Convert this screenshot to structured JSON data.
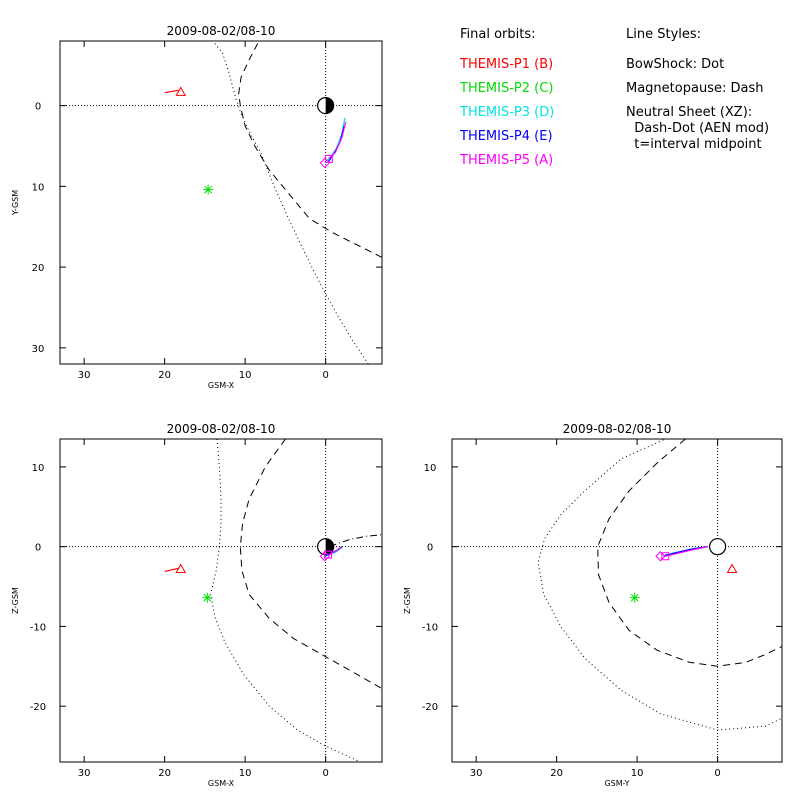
{
  "legend": {
    "heading": "Final orbits:",
    "items": [
      {
        "label": "THEMIS-P1 (B)",
        "color": "#ff0000"
      },
      {
        "label": "THEMIS-P2 (C)",
        "color": "#00dd00"
      },
      {
        "label": "THEMIS-P3 (D)",
        "color": "#00e5e5"
      },
      {
        "label": "THEMIS-P4 (E)",
        "color": "#0000ff"
      },
      {
        "label": "THEMIS-P5 (A)",
        "color": "#ff00ff"
      }
    ]
  },
  "line_styles": {
    "heading": "Line Styles:",
    "lines": [
      "BowShock: Dot",
      "Magnetopause: Dash",
      "Neutral Sheet (XZ):",
      "  Dash-Dot (AEN mod)",
      "  t=interval midpoint"
    ]
  },
  "chart_data": [
    {
      "type": "scatter",
      "title": "2009-08-02/08-10",
      "xlabel": "GSM-X",
      "ylabel": "Y-GSM",
      "xlim": [
        33,
        -7
      ],
      "ylim": [
        32,
        -8
      ],
      "xticks": [
        30,
        20,
        10,
        0
      ],
      "xticklabels": [
        "30",
        "20",
        "10",
        "0"
      ],
      "yticks": [
        0,
        10,
        20,
        30
      ],
      "yticklabels": [
        "0",
        "10",
        "20",
        "30"
      ],
      "earth": [
        0,
        0
      ],
      "bowshock": [
        [
          -5.3,
          32
        ],
        [
          -3.3,
          29
        ],
        [
          -1.5,
          26
        ],
        [
          0.7,
          22
        ],
        [
          2.7,
          18
        ],
        [
          4.6,
          14
        ],
        [
          6.4,
          10
        ],
        [
          8,
          6
        ],
        [
          9.6,
          3
        ],
        [
          10.5,
          1
        ],
        [
          11.2,
          -1
        ],
        [
          12,
          -4
        ],
        [
          12.8,
          -6.5
        ],
        [
          14,
          -8
        ]
      ],
      "magnetopause": [
        [
          -7,
          18.8
        ],
        [
          -4,
          17.3
        ],
        [
          -1,
          15.8
        ],
        [
          2,
          14
        ],
        [
          4.5,
          11
        ],
        [
          7,
          8
        ],
        [
          8.8,
          5
        ],
        [
          10,
          2.5
        ],
        [
          10.6,
          0
        ],
        [
          10.8,
          -1.5
        ],
        [
          10.5,
          -3.5
        ],
        [
          9.6,
          -5.5
        ],
        [
          8.8,
          -7
        ],
        [
          8.3,
          -8
        ]
      ],
      "series": [
        {
          "name": "THEMIS-P1 (B)",
          "color": "#ff0000",
          "path": [
            [
              20,
              -1.6
            ],
            [
              18.3,
              -1.9
            ]
          ],
          "marker": "triangle",
          "at": [
            18,
            -1.7
          ]
        },
        {
          "name": "THEMIS-P2 (C)",
          "color": "#00dd00",
          "path": [],
          "marker": "asterisk",
          "at": [
            14.6,
            10.4
          ]
        },
        {
          "name": "THEMIS-P3 (D)",
          "color": "#00e5e5",
          "path": [
            [
              -2.4,
              1.5
            ],
            [
              -2,
              3.5
            ],
            [
              -1.3,
              5.4
            ],
            [
              -0.2,
              6.8
            ]
          ],
          "marker": "none",
          "at": null
        },
        {
          "name": "THEMIS-P4 (E)",
          "color": "#0000ff",
          "path": [
            [
              -2.3,
              2.5
            ],
            [
              -1.8,
              4.5
            ],
            [
              -1,
              6
            ],
            [
              -0.3,
              7
            ]
          ],
          "marker": "none",
          "at": null
        },
        {
          "name": "THEMIS-P5 (A)",
          "color": "#ff00ff",
          "path": [
            [
              -2.5,
              2
            ],
            [
              -2,
              4
            ],
            [
              -1.2,
              5.8
            ],
            [
              -0.4,
              6.6
            ]
          ],
          "marker": "square",
          "at": [
            -0.4,
            6.6
          ]
        },
        {
          "name": "THEMIS-P5 (A)",
          "color": "#ff00ff",
          "path": [],
          "marker": "diamond",
          "at": [
            0.1,
            7.1
          ]
        }
      ]
    },
    {
      "type": "scatter",
      "title": "2009-08-02/08-10",
      "xlabel": "GSM-X",
      "ylabel": "Z-GSM",
      "xlim": [
        33,
        -7
      ],
      "ylim": [
        -27,
        13.5
      ],
      "xticks": [
        30,
        20,
        10,
        0
      ],
      "xticklabels": [
        "30",
        "20",
        "10",
        "0"
      ],
      "yticks": [
        10,
        0,
        -10,
        -20
      ],
      "yticklabels": [
        "10",
        "0",
        "-10",
        "-20"
      ],
      "earth": [
        0,
        0
      ],
      "bowshock": [
        [
          13.5,
          13.5
        ],
        [
          13.2,
          10
        ],
        [
          13,
          6
        ],
        [
          13,
          3
        ],
        [
          13.2,
          0
        ],
        [
          13.6,
          -3
        ],
        [
          14.3,
          -6
        ],
        [
          13.7,
          -9
        ],
        [
          12.5,
          -12
        ],
        [
          10.2,
          -16
        ],
        [
          7,
          -20
        ],
        [
          3.5,
          -23
        ],
        [
          0,
          -25
        ],
        [
          -4.3,
          -27
        ]
      ],
      "magnetopause": [
        [
          5,
          13.5
        ],
        [
          7.5,
          10
        ],
        [
          9.5,
          6
        ],
        [
          10.3,
          3
        ],
        [
          10.6,
          0
        ],
        [
          10.4,
          -3
        ],
        [
          9.5,
          -6
        ],
        [
          7,
          -9
        ],
        [
          4,
          -11.5
        ],
        [
          0,
          -13.8
        ],
        [
          -3,
          -15.5
        ],
        [
          -7,
          -17.8
        ]
      ],
      "neutral_sheet": [
        [
          -0.5,
          0
        ],
        [
          -1.5,
          0.4
        ],
        [
          -3,
          0.9
        ],
        [
          -5,
          1.3
        ],
        [
          -7,
          1.5
        ]
      ],
      "series": [
        {
          "name": "THEMIS-P1 (B)",
          "color": "#ff0000",
          "path": [
            [
              20,
              -3.1
            ],
            [
              18.2,
              -2.7
            ]
          ],
          "marker": "triangle",
          "at": [
            18,
            -2.8
          ]
        },
        {
          "name": "THEMIS-P2 (C)",
          "color": "#00dd00",
          "path": [],
          "marker": "asterisk",
          "at": [
            14.7,
            -6.4
          ]
        },
        {
          "name": "THEMIS-P3 (D)",
          "color": "#00e5e5",
          "path": [
            [
              -2,
              -0.1
            ],
            [
              -1.4,
              -0.6
            ],
            [
              -0.6,
              -1
            ],
            [
              0,
              -1.2
            ]
          ],
          "marker": "none",
          "at": null
        },
        {
          "name": "THEMIS-P4 (E)",
          "color": "#0000ff",
          "path": [
            [
              -2,
              0
            ],
            [
              -1.3,
              -0.5
            ],
            [
              -0.5,
              -0.9
            ],
            [
              0,
              -1.1
            ]
          ],
          "marker": "none",
          "at": null
        },
        {
          "name": "THEMIS-P5 (A)",
          "color": "#ff00ff",
          "path": [
            [
              -1.9,
              -0.1
            ],
            [
              -1.2,
              -0.6
            ],
            [
              -0.4,
              -1
            ]
          ],
          "marker": "square",
          "at": [
            -0.3,
            -1
          ]
        },
        {
          "name": "THEMIS-P5 (A)",
          "color": "#ff00ff",
          "path": [],
          "marker": "diamond",
          "at": [
            0.1,
            -1.2
          ]
        }
      ]
    },
    {
      "type": "scatter",
      "title": "2009-08-02/08-10",
      "xlabel": "GSM-Y",
      "ylabel": "Z-GSM",
      "xlim": [
        33,
        -8
      ],
      "ylim": [
        -27,
        13.5
      ],
      "xticks": [
        30,
        20,
        10,
        0
      ],
      "xticklabels": [
        "30",
        "20",
        "10",
        "0"
      ],
      "yticks": [
        10,
        0,
        -10,
        -20
      ],
      "yticklabels": [
        "10",
        "0",
        "-10",
        "-20"
      ],
      "earth": [
        0,
        0
      ],
      "bowshock": [
        [
          -7,
          13.5
        ],
        [
          0,
          14.5
        ],
        [
          6.5,
          13.5
        ],
        [
          12,
          11
        ],
        [
          16.5,
          7
        ],
        [
          19.5,
          4
        ],
        [
          21.5,
          1
        ],
        [
          22.3,
          -2
        ],
        [
          21.6,
          -6
        ],
        [
          19.5,
          -10
        ],
        [
          16.5,
          -14
        ],
        [
          12,
          -18
        ],
        [
          7,
          -21
        ],
        [
          0,
          -23
        ],
        [
          -6,
          -22.5
        ],
        [
          -8,
          -21.5
        ]
      ],
      "magnetopause": [
        [
          4,
          13.5
        ],
        [
          7.5,
          10.5
        ],
        [
          11,
          7
        ],
        [
          13.5,
          3.5
        ],
        [
          14.9,
          0
        ],
        [
          14.8,
          -3.5
        ],
        [
          13.5,
          -7
        ],
        [
          11,
          -10.5
        ],
        [
          7.5,
          -13
        ],
        [
          3.5,
          -14.5
        ],
        [
          0,
          -15
        ],
        [
          -3.5,
          -14.5
        ],
        [
          -6,
          -13.5
        ],
        [
          -8,
          -12.5
        ]
      ],
      "series": [
        {
          "name": "THEMIS-P1 (B)",
          "color": "#ff0000",
          "path": [],
          "marker": "triangle",
          "at": [
            -1.8,
            -2.8
          ]
        },
        {
          "name": "THEMIS-P2 (C)",
          "color": "#00dd00",
          "path": [],
          "marker": "asterisk",
          "at": [
            10.3,
            -6.4
          ]
        },
        {
          "name": "THEMIS-P3 (D)",
          "color": "#00e5e5",
          "path": [
            [
              1.5,
              0
            ],
            [
              3.5,
              -0.4
            ],
            [
              5.5,
              -0.8
            ],
            [
              6.8,
              -1.2
            ]
          ],
          "marker": "none",
          "at": null
        },
        {
          "name": "THEMIS-P4 (E)",
          "color": "#0000ff",
          "path": [
            [
              1.3,
              0
            ],
            [
              3.3,
              -0.3
            ],
            [
              5.3,
              -0.8
            ],
            [
              6.6,
              -1.1
            ]
          ],
          "marker": "none",
          "at": null
        },
        {
          "name": "THEMIS-P5 (A)",
          "color": "#ff00ff",
          "path": [
            [
              1.2,
              0
            ],
            [
              3.2,
              -0.4
            ],
            [
              5.2,
              -0.9
            ],
            [
              6.5,
              -1.2
            ]
          ],
          "marker": "square",
          "at": [
            6.5,
            -1.2
          ]
        },
        {
          "name": "THEMIS-P5 (A)",
          "color": "#ff00ff",
          "path": [],
          "marker": "diamond",
          "at": [
            7.1,
            -1.2
          ]
        }
      ]
    }
  ]
}
